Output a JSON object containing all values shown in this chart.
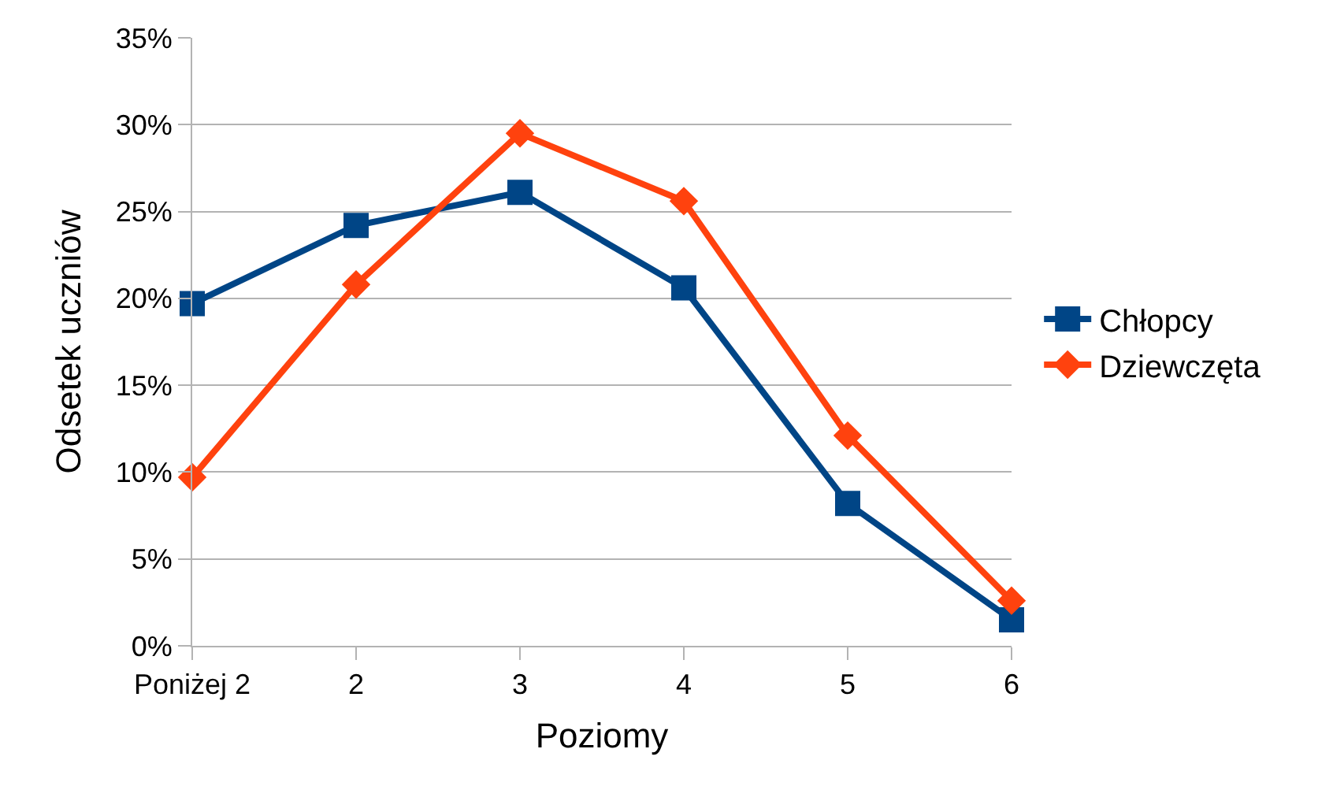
{
  "chart_data": {
    "type": "line",
    "xlabel": "Poziomy",
    "ylabel": "Odsetek uczniów",
    "categories": [
      "Poniżej 2",
      "2",
      "3",
      "4",
      "5",
      "6"
    ],
    "series": [
      {
        "name": "Chłopcy",
        "color": "#004586",
        "marker": "square",
        "values": [
          19.7,
          24.2,
          26.1,
          20.6,
          8.2,
          1.5
        ]
      },
      {
        "name": "Dziewczęta",
        "color": "#ff420e",
        "marker": "diamond",
        "values": [
          9.7,
          20.8,
          29.5,
          25.6,
          12.1,
          2.6
        ]
      }
    ],
    "ylim": [
      0,
      35
    ],
    "yticks": [
      {
        "value": 0,
        "label": "0%"
      },
      {
        "value": 5,
        "label": "5%"
      },
      {
        "value": 10,
        "label": "10%"
      },
      {
        "value": 15,
        "label": "15%"
      },
      {
        "value": 20,
        "label": "20%"
      },
      {
        "value": 25,
        "label": "25%"
      },
      {
        "value": 30,
        "label": "30%"
      },
      {
        "value": 35,
        "label": "35%"
      }
    ],
    "grid": "y",
    "legend": "right",
    "line_style": "solid"
  }
}
